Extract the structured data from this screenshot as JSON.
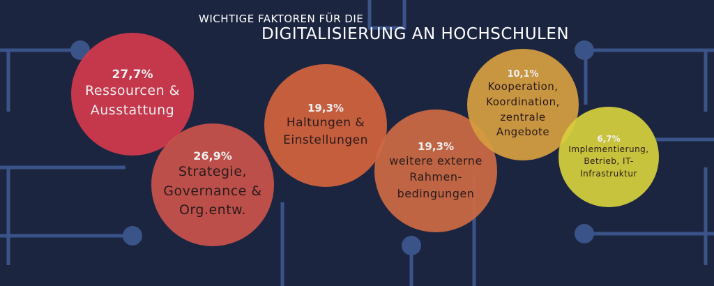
{
  "title": {
    "line1": "Wichtige Faktoren für die",
    "line2": "Digitalisierung an Hochschulen"
  },
  "colors": {
    "background": "#1c2540",
    "circuit": "#3a5388"
  },
  "factors": [
    {
      "percent": "27,7%",
      "label": "Ressourcen &\nAusstattung",
      "color": "#d2394c",
      "text_color": "#ffffff"
    },
    {
      "percent": "26,9%",
      "label": "Strategie,\nGovernance &\nOrg.entw.",
      "color": "#c9534a",
      "text_color": "#2a1a1a"
    },
    {
      "percent": "19,3%",
      "label": "Haltungen &\nEinstellungen",
      "color": "#d2633d",
      "text_color": "#2a1a1a"
    },
    {
      "percent": "19,3%",
      "label": "weitere externe\nRahmen-\nbedingungen",
      "color": "#cc6a44",
      "text_color": "#2a1a1a"
    },
    {
      "percent": "10,1%",
      "label": "Kooperation,\nKoordination,\nzentrale\nAngebote",
      "color": "#d69e40",
      "text_color": "#2a1a1a"
    },
    {
      "percent": "6,7%",
      "label": "Implementierung,\nBetrieb, IT-\nInfrastruktur",
      "color": "#d6cf3c",
      "text_color": "#2a1a1a"
    }
  ]
}
